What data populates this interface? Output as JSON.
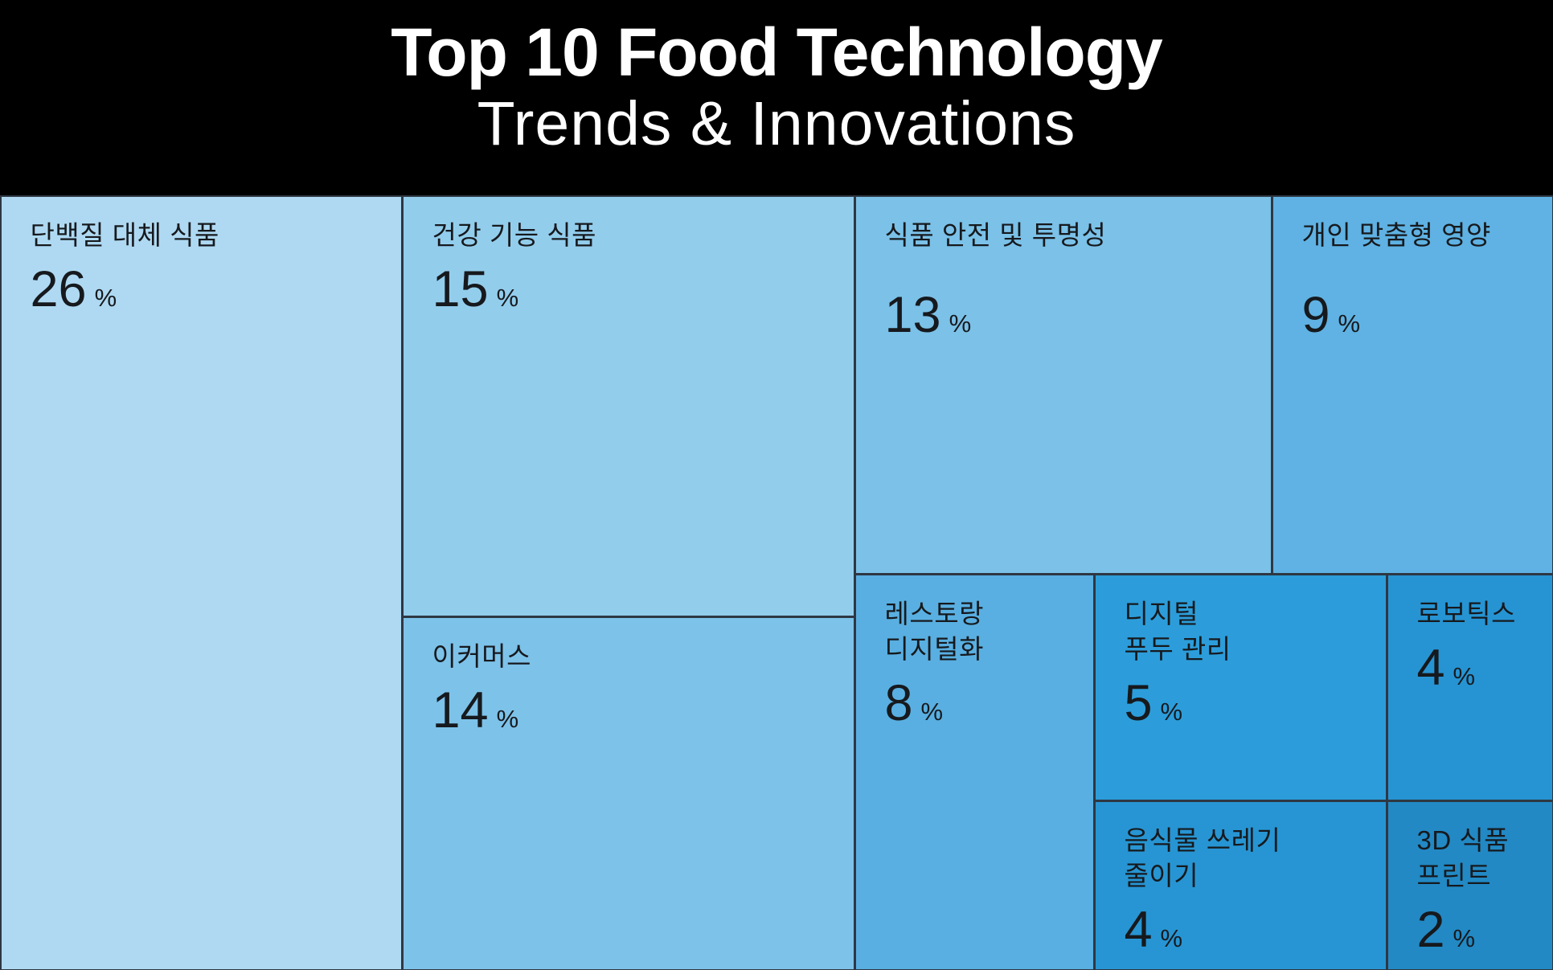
{
  "header": {
    "title_line1": "Top 10 Food Technology",
    "title_line2": "Trends & Innovations"
  },
  "chart_data": {
    "type": "treemap",
    "title": "Top 10 Food Technology Trends & Innovations",
    "unit": "%",
    "value_total": 100,
    "legend": "none",
    "items": [
      {
        "label": "단백질 대체 식품",
        "value": 26,
        "color": "#AFD9F2"
      },
      {
        "label": "건강 기능 식품",
        "value": 15,
        "color": "#93CDEC"
      },
      {
        "label": "이커머스",
        "value": 14,
        "color": "#7DC2E9"
      },
      {
        "label": "식품 안전 및 투명성",
        "value": 13,
        "color": "#7BC1E8"
      },
      {
        "label": "개인 맞춤형 영양",
        "value": 9,
        "color": "#5FB2E3"
      },
      {
        "label": "레스토랑\n디지털화",
        "value": 8,
        "color": "#59AFE1"
      },
      {
        "label": "디지털\n푸두 관리",
        "value": 5,
        "color": "#2C9DDA"
      },
      {
        "label": "로보틱스",
        "value": 4,
        "color": "#2694D3"
      },
      {
        "label": "음식물 쓰레기\n줄이기",
        "value": 4,
        "color": "#2795D3"
      },
      {
        "label": "3D 식품\n프린트",
        "value": 2,
        "color": "#2289C4"
      }
    ]
  }
}
